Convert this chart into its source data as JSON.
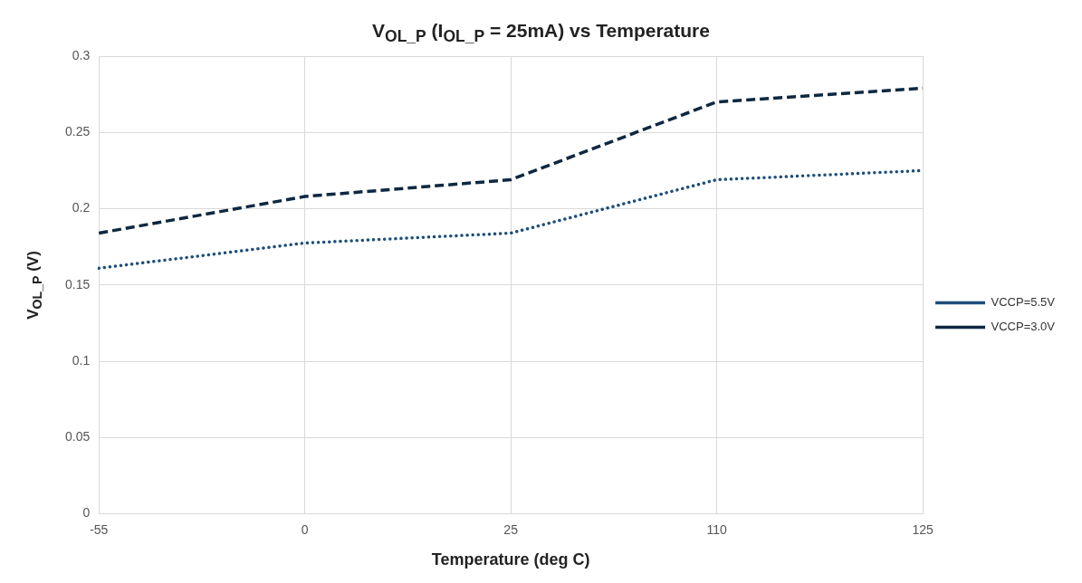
{
  "chart_data": {
    "type": "line",
    "title": "V$_{OL_P}$ (I$_{OL_P}$ = 25mA) vs Temperature",
    "xlabel": "Temperature (deg C)",
    "ylabel": "V$_{OL_P}$ (V)",
    "categories": [
      "-55",
      "0",
      "25",
      "110",
      "125"
    ],
    "series": [
      {
        "name": "VCCP=5.5V",
        "color": "#1f4e79",
        "line_style": "dotted",
        "values": [
          0.161,
          0.1775,
          0.184,
          0.219,
          0.225
        ]
      },
      {
        "name": "VCCP=3.0V",
        "color": "#0e2841",
        "line_style": "dashed",
        "values": [
          0.184,
          0.208,
          0.219,
          0.27,
          0.279
        ]
      }
    ],
    "ylim": [
      0,
      0.3
    ],
    "yticks": [
      0,
      0.05,
      0.1,
      0.15,
      0.2,
      0.25,
      0.3
    ],
    "grid": true,
    "legend": "right",
    "marker": "none"
  }
}
